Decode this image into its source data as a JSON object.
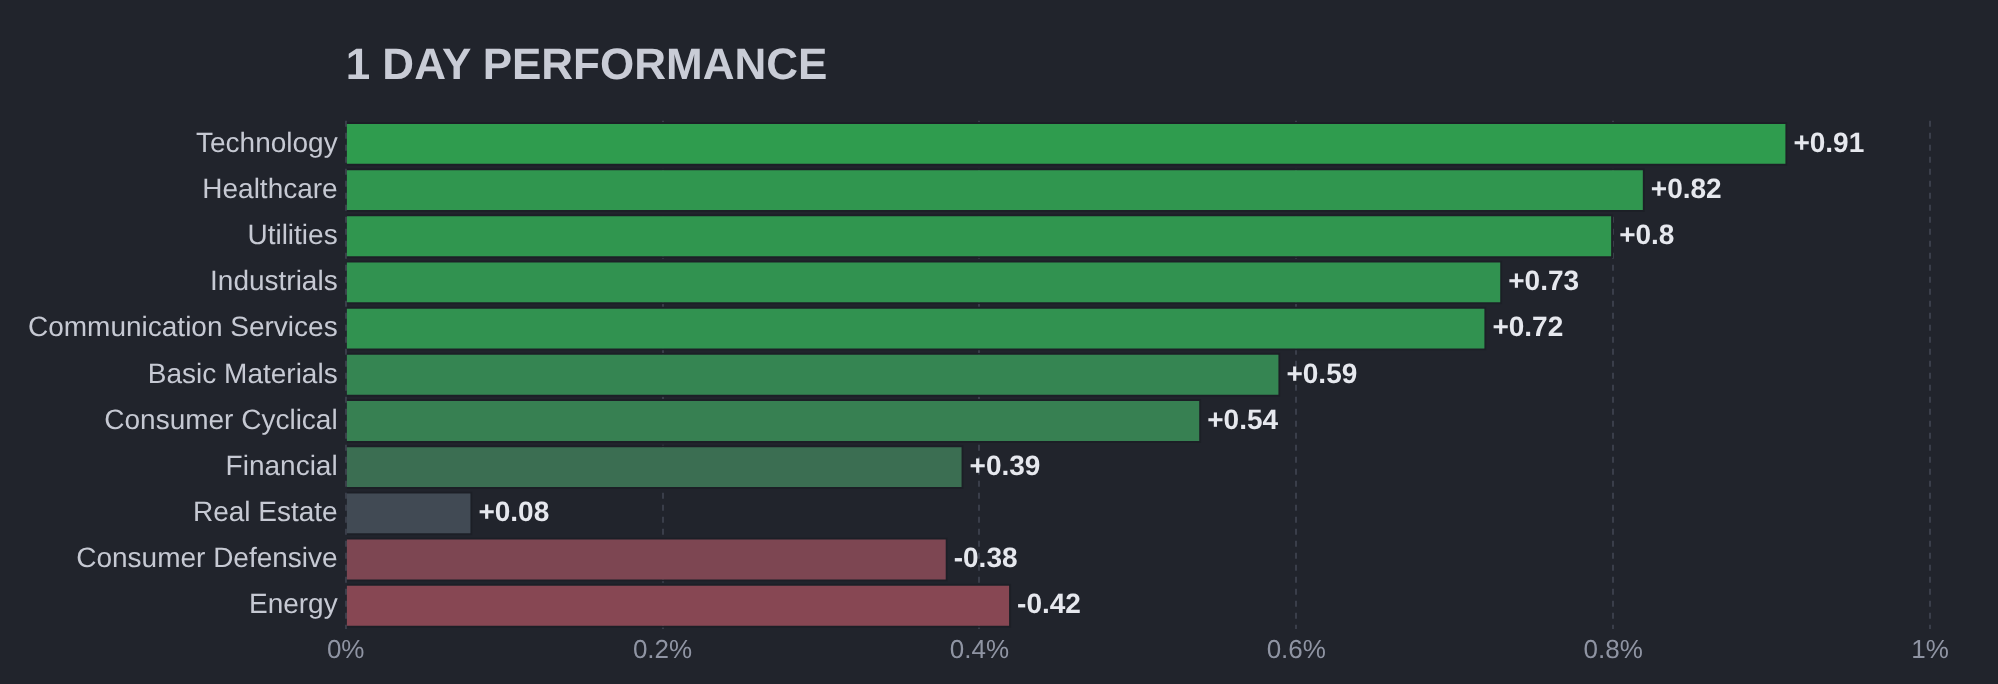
{
  "chart_data": {
    "type": "bar",
    "orientation": "horizontal",
    "title": "1 DAY PERFORMANCE",
    "categories": [
      "Technology",
      "Healthcare",
      "Utilities",
      "Industrials",
      "Communication Services",
      "Basic Materials",
      "Consumer Cyclical",
      "Financial",
      "Real Estate",
      "Consumer Defensive",
      "Energy"
    ],
    "values": [
      0.91,
      0.82,
      0.8,
      0.73,
      0.72,
      0.59,
      0.54,
      0.39,
      0.08,
      -0.38,
      -0.42
    ],
    "base": [
      0,
      0,
      0,
      0,
      0,
      0,
      0,
      0,
      0,
      0.38,
      0.42
    ],
    "value_labels": [
      "+0.91",
      "+0.82",
      "+0.8",
      "+0.73",
      "+0.72",
      "+0.59",
      "+0.54",
      "+0.39",
      "+0.08",
      "-0.38",
      "-0.42"
    ],
    "colors": [
      "#2f9c4e",
      "#30964f",
      "#30964f",
      "#319250",
      "#319250",
      "#358552",
      "#378052",
      "#3b6e52",
      "#414a54",
      "#7d4652",
      "#874753"
    ],
    "xlim": [
      0,
      1
    ],
    "xticks": [
      {
        "value": 0,
        "label": "0%"
      },
      {
        "value": 0.2,
        "label": "0.2%"
      },
      {
        "value": 0.4,
        "label": "0.4%"
      },
      {
        "value": 0.6,
        "label": "0.6%"
      },
      {
        "value": 0.8,
        "label": "0.8%"
      },
      {
        "value": 1,
        "label": "1%"
      }
    ],
    "grid": "x",
    "legend": false
  }
}
